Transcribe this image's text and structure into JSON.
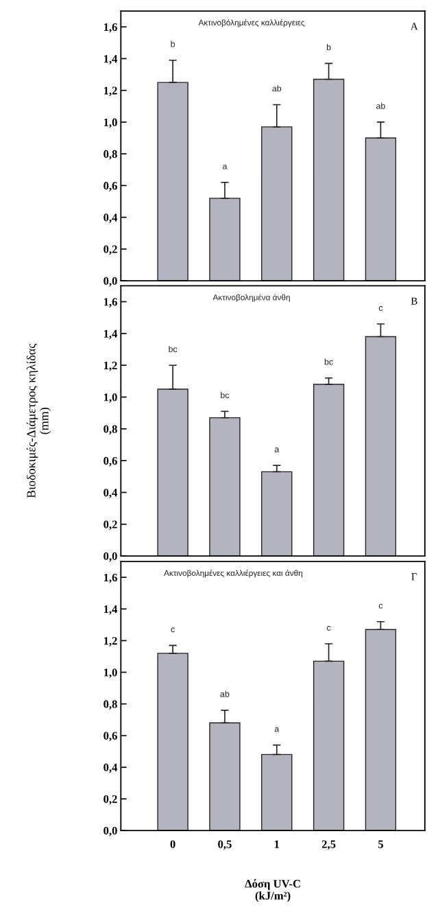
{
  "chart_data": [
    {
      "type": "bar",
      "title": "Ακτινοβόλημένες καλλιέργειες",
      "categories": [
        "0",
        "0,5",
        "1",
        "2,5",
        "5"
      ],
      "values": [
        1.25,
        0.52,
        0.97,
        1.27,
        0.9
      ],
      "color": "#b4b3c0",
      "errors": [
        [
          1.25,
          1.39
        ],
        [
          0.52,
          0.62
        ],
        [
          0.97,
          1.11
        ],
        [
          1.27,
          1.37
        ],
        [
          0.9,
          1.0
        ]
      ],
      "ylim": [
        0,
        1.7
      ],
      "yticks": [
        {
          "value": 0,
          "label": "0,0"
        },
        {
          "value": 0.2,
          "label": "0,2"
        },
        {
          "value": 0.4,
          "label": "0,4"
        },
        {
          "value": 0.6,
          "label": "0,6"
        },
        {
          "value": 0.8,
          "label": "0,8"
        },
        {
          "value": 1.0,
          "label": "1,0"
        },
        {
          "value": 1.2,
          "label": "1,2"
        },
        {
          "value": 1.4,
          "label": "1,4"
        },
        {
          "value": 1.6,
          "label": "1,6"
        }
      ],
      "tick_labels": "y",
      "grid": false,
      "legend": false,
      "annotations": [
        "A",
        {
          "text": "b",
          "x": "0",
          "y": 1.39
        },
        {
          "text": "a",
          "x": "0,5",
          "y": 0.62
        },
        {
          "text": "ab",
          "x": "1",
          "y": 1.11
        },
        {
          "text": "b",
          "x": "2,5",
          "y": 1.37
        },
        {
          "text": "ab",
          "x": "5",
          "y": 1.0
        }
      ]
    },
    {
      "type": "bar",
      "title": "Ακτινοβολημένα άνθη",
      "categories": [
        "0",
        "0,5",
        "1",
        "2,5",
        "5"
      ],
      "values": [
        1.05,
        0.87,
        0.53,
        1.08,
        1.38
      ],
      "color": "#b4b3c0",
      "errors": [
        [
          1.05,
          1.2
        ],
        [
          0.87,
          0.91
        ],
        [
          0.53,
          0.57
        ],
        [
          1.08,
          1.12
        ],
        [
          1.38,
          1.46
        ]
      ],
      "ylabel": "Βιοδοκιμές-Διάμετρος κηλίδας\n(mm)",
      "ylim": [
        0,
        1.7
      ],
      "yticks": [
        {
          "value": 0,
          "label": "0,0"
        },
        {
          "value": 0.2,
          "label": "0,2"
        },
        {
          "value": 0.4,
          "label": "0,4"
        },
        {
          "value": 0.6,
          "label": "0,6"
        },
        {
          "value": 0.8,
          "label": "0,8"
        },
        {
          "value": 1.0,
          "label": "1,0"
        },
        {
          "value": 1.2,
          "label": "1,2"
        },
        {
          "value": 1.4,
          "label": "1,4"
        },
        {
          "value": 1.6,
          "label": "1,6"
        }
      ],
      "tick_labels": "y",
      "grid": false,
      "legend": false,
      "annotations": [
        "B",
        {
          "text": "bc",
          "x": "0",
          "y": 1.2
        },
        {
          "text": "bc",
          "x": "0,5",
          "y": 0.91
        },
        {
          "text": "a",
          "x": "1",
          "y": 0.57
        },
        {
          "text": "bc",
          "x": "2,5",
          "y": 1.12
        },
        {
          "text": "c",
          "x": "5",
          "y": 1.46
        }
      ]
    },
    {
      "type": "bar",
      "title": "Ακτινοβολημένες καλλιέργειες και άνθη",
      "categories": [
        "0",
        "0,5",
        "1",
        "2,5",
        "5"
      ],
      "values": [
        1.12,
        0.68,
        0.48,
        1.07,
        1.27
      ],
      "color": "#b4b3c0",
      "errors": [
        [
          1.12,
          1.17
        ],
        [
          0.68,
          0.76
        ],
        [
          0.48,
          0.54
        ],
        [
          1.07,
          1.18
        ],
        [
          1.27,
          1.32
        ]
      ],
      "xlabel": "Δόση UV-C\n(kJ/m²)",
      "ylim": [
        0,
        1.7
      ],
      "yticks": [
        {
          "value": 0,
          "label": "0,0"
        },
        {
          "value": 0.2,
          "label": "0,2"
        },
        {
          "value": 0.4,
          "label": "0,4"
        },
        {
          "value": 0.6,
          "label": "0,6"
        },
        {
          "value": 0.8,
          "label": "0,8"
        },
        {
          "value": 1.0,
          "label": "1,0"
        },
        {
          "value": 1.2,
          "label": "1,2"
        },
        {
          "value": 1.4,
          "label": "1,4"
        },
        {
          "value": 1.6,
          "label": "1,6"
        }
      ],
      "grid": false,
      "legend": false,
      "annotations": [
        "Γ",
        {
          "text": "c",
          "x": "0",
          "y": 1.17
        },
        {
          "text": "ab",
          "x": "0,5",
          "y": 0.76
        },
        {
          "text": "a",
          "x": "1",
          "y": 0.54
        },
        {
          "text": "c",
          "x": "2,5",
          "y": 1.18
        },
        {
          "text": "c",
          "x": "5",
          "y": 1.32
        }
      ]
    }
  ]
}
